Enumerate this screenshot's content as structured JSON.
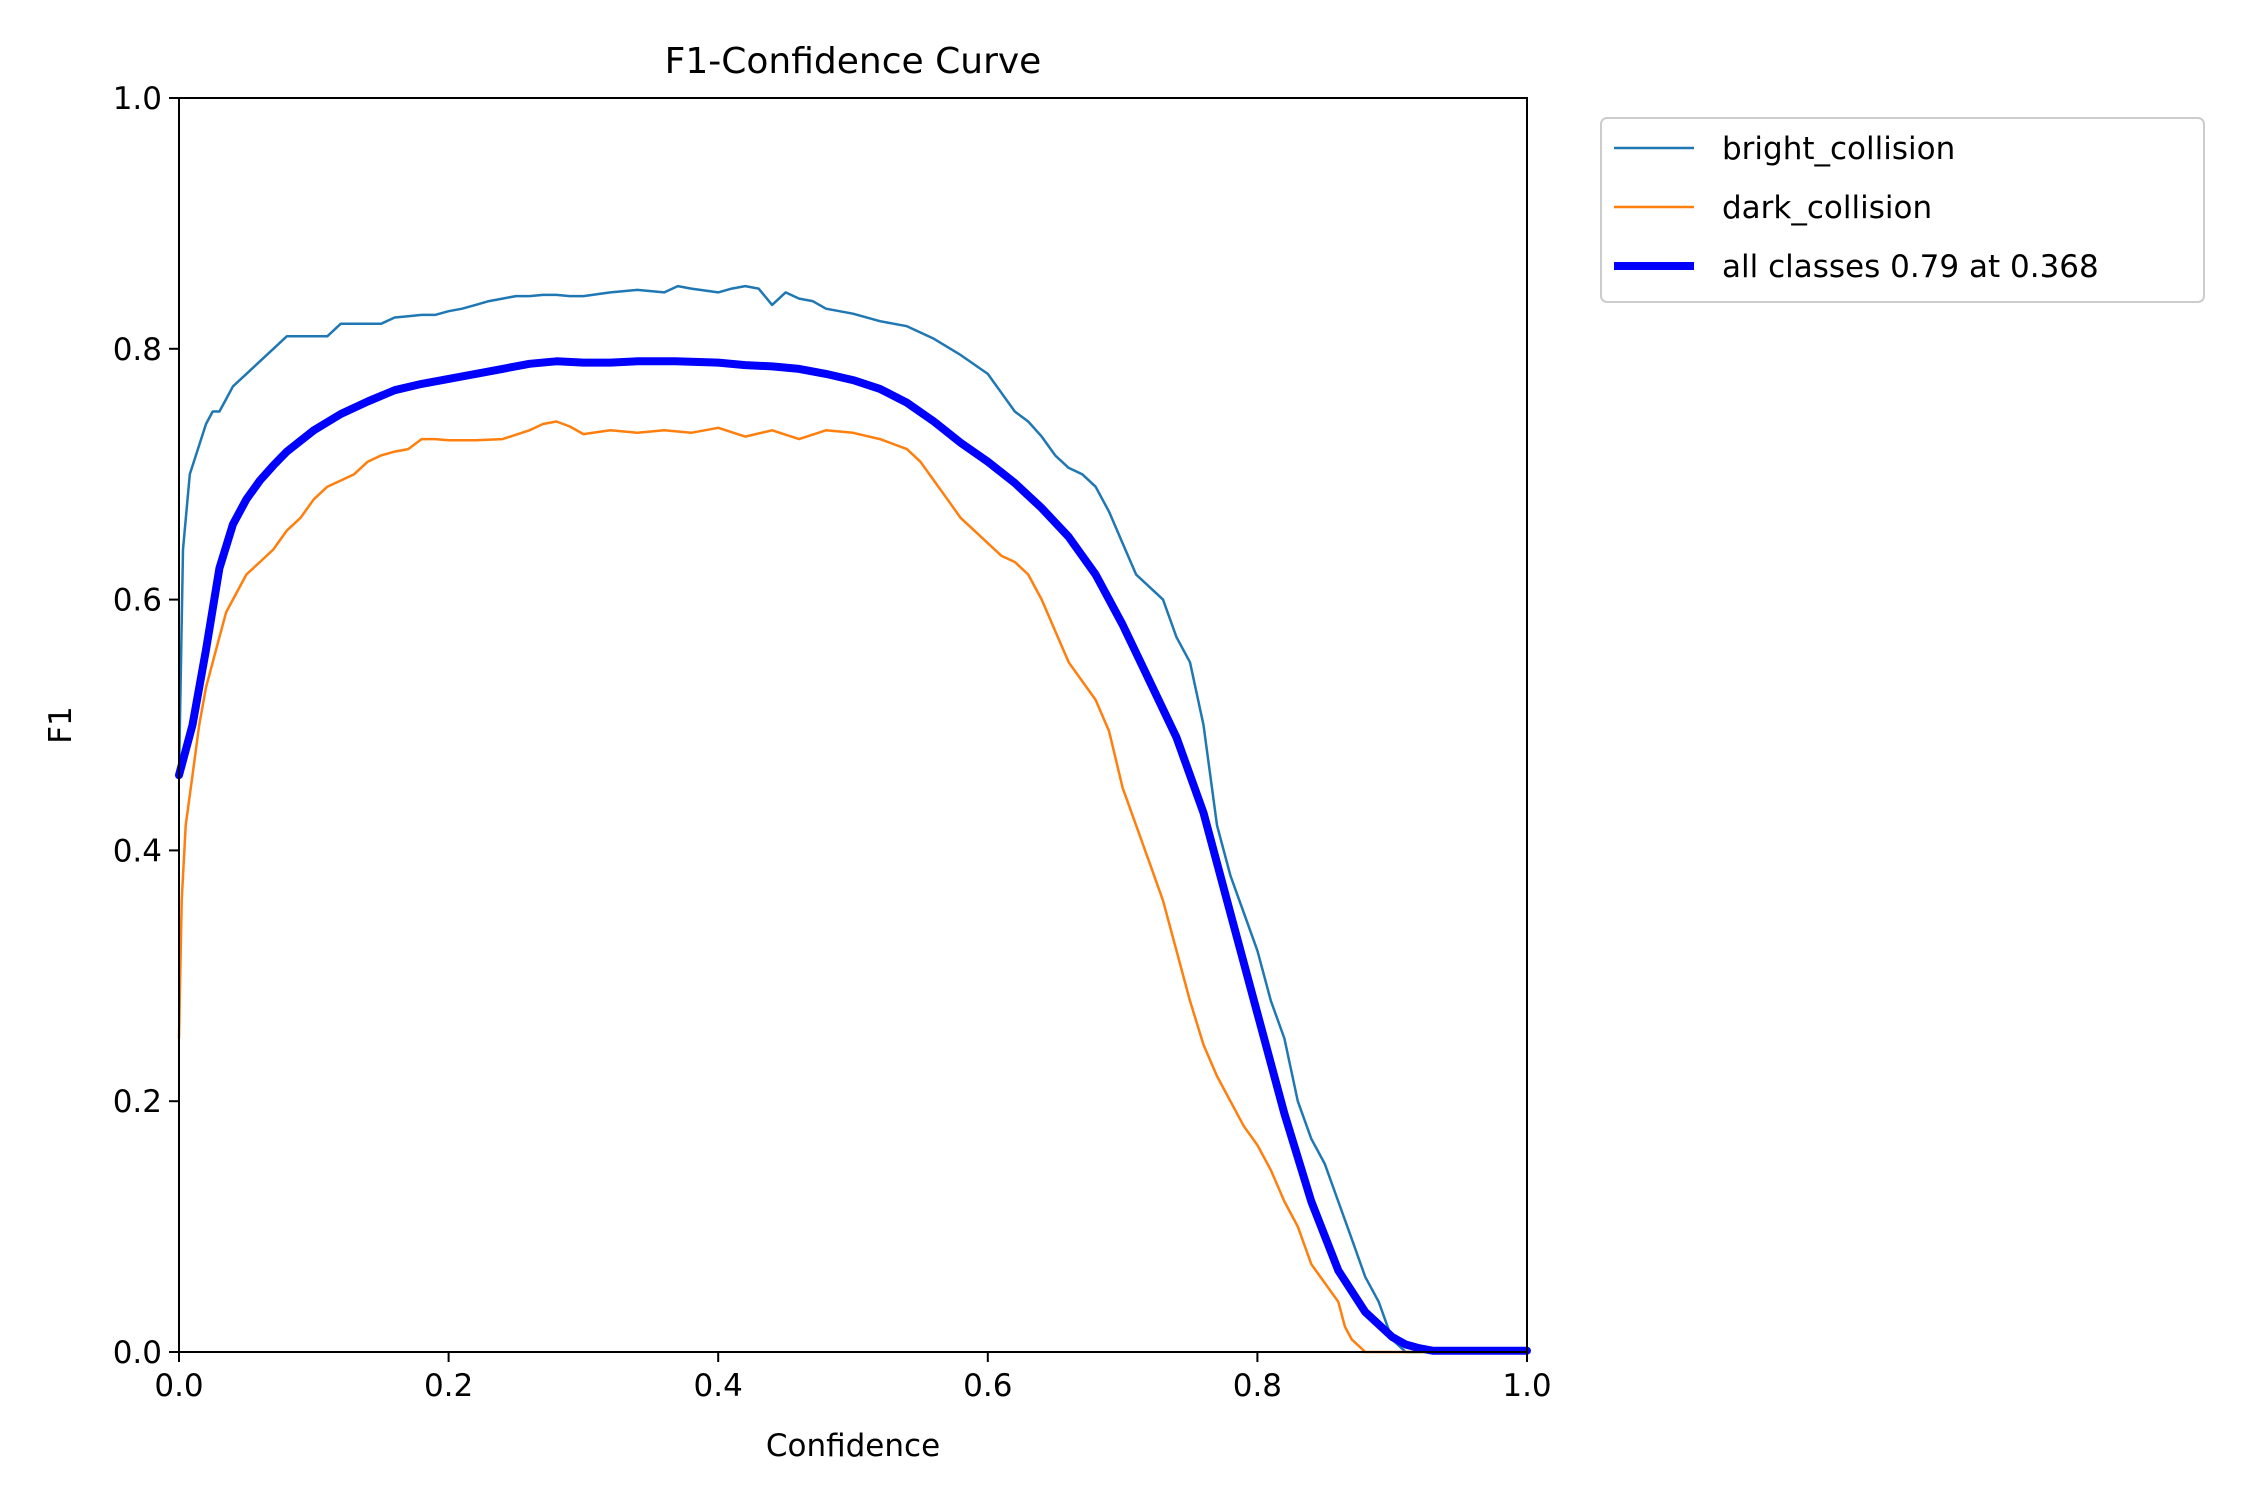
{
  "chart_data": {
    "type": "line",
    "title": "F1-Confidence Curve",
    "xlabel": "Confidence",
    "ylabel": "F1",
    "xlim": [
      0.0,
      1.0
    ],
    "ylim": [
      0.0,
      1.0
    ],
    "grid": false,
    "legend_position": "outside top-right",
    "xticks": [
      "0.0",
      "0.2",
      "0.4",
      "0.6",
      "0.8",
      "1.0"
    ],
    "yticks": [
      "0.0",
      "0.2",
      "0.4",
      "0.6",
      "0.8",
      "1.0"
    ],
    "series": [
      {
        "name": "bright_collision",
        "color": "#1f77b4",
        "emphasis": false,
        "x": [
          0.0,
          0.003,
          0.008,
          0.014,
          0.02,
          0.025,
          0.03,
          0.035,
          0.04,
          0.05,
          0.06,
          0.07,
          0.08,
          0.09,
          0.1,
          0.11,
          0.12,
          0.13,
          0.14,
          0.15,
          0.16,
          0.17,
          0.18,
          0.19,
          0.2,
          0.21,
          0.22,
          0.23,
          0.24,
          0.25,
          0.26,
          0.27,
          0.28,
          0.29,
          0.3,
          0.32,
          0.34,
          0.36,
          0.37,
          0.38,
          0.4,
          0.41,
          0.42,
          0.43,
          0.44,
          0.45,
          0.46,
          0.47,
          0.48,
          0.5,
          0.52,
          0.54,
          0.56,
          0.58,
          0.6,
          0.61,
          0.62,
          0.63,
          0.64,
          0.65,
          0.66,
          0.67,
          0.68,
          0.69,
          0.7,
          0.71,
          0.72,
          0.73,
          0.74,
          0.75,
          0.76,
          0.77,
          0.78,
          0.79,
          0.8,
          0.81,
          0.82,
          0.83,
          0.84,
          0.85,
          0.86,
          0.87,
          0.88,
          0.89,
          0.9,
          0.91,
          0.92,
          0.93,
          0.95,
          0.97,
          1.0
        ],
        "y": [
          0.46,
          0.64,
          0.7,
          0.72,
          0.74,
          0.75,
          0.75,
          0.76,
          0.77,
          0.78,
          0.79,
          0.8,
          0.81,
          0.81,
          0.81,
          0.81,
          0.82,
          0.82,
          0.82,
          0.82,
          0.825,
          0.826,
          0.827,
          0.827,
          0.83,
          0.832,
          0.835,
          0.838,
          0.84,
          0.842,
          0.842,
          0.843,
          0.843,
          0.842,
          0.842,
          0.845,
          0.847,
          0.845,
          0.85,
          0.848,
          0.845,
          0.848,
          0.85,
          0.848,
          0.835,
          0.845,
          0.84,
          0.838,
          0.832,
          0.828,
          0.822,
          0.818,
          0.808,
          0.795,
          0.78,
          0.765,
          0.75,
          0.742,
          0.73,
          0.715,
          0.705,
          0.7,
          0.69,
          0.67,
          0.645,
          0.62,
          0.61,
          0.6,
          0.57,
          0.55,
          0.5,
          0.42,
          0.38,
          0.35,
          0.32,
          0.28,
          0.25,
          0.2,
          0.17,
          0.15,
          0.12,
          0.09,
          0.06,
          0.04,
          0.01,
          0.0,
          0.0,
          0.0,
          0.0,
          0.0,
          0.0
        ]
      },
      {
        "name": "dark_collision",
        "color": "#ff7f0e",
        "emphasis": false,
        "x": [
          0.0,
          0.002,
          0.005,
          0.01,
          0.015,
          0.02,
          0.025,
          0.03,
          0.035,
          0.04,
          0.05,
          0.06,
          0.07,
          0.08,
          0.09,
          0.1,
          0.11,
          0.12,
          0.13,
          0.14,
          0.15,
          0.16,
          0.17,
          0.18,
          0.19,
          0.2,
          0.22,
          0.24,
          0.26,
          0.27,
          0.28,
          0.29,
          0.3,
          0.32,
          0.34,
          0.36,
          0.38,
          0.4,
          0.42,
          0.44,
          0.46,
          0.48,
          0.5,
          0.52,
          0.54,
          0.55,
          0.56,
          0.57,
          0.58,
          0.59,
          0.6,
          0.61,
          0.62,
          0.63,
          0.64,
          0.65,
          0.66,
          0.67,
          0.68,
          0.69,
          0.7,
          0.71,
          0.72,
          0.73,
          0.74,
          0.75,
          0.76,
          0.77,
          0.78,
          0.79,
          0.8,
          0.81,
          0.82,
          0.83,
          0.84,
          0.85,
          0.86,
          0.865,
          0.87,
          0.875,
          0.88,
          0.9,
          0.95,
          1.0
        ],
        "y": [
          0.25,
          0.36,
          0.42,
          0.46,
          0.5,
          0.53,
          0.55,
          0.57,
          0.59,
          0.6,
          0.62,
          0.63,
          0.64,
          0.655,
          0.665,
          0.68,
          0.69,
          0.695,
          0.7,
          0.71,
          0.715,
          0.718,
          0.72,
          0.728,
          0.728,
          0.727,
          0.727,
          0.728,
          0.735,
          0.74,
          0.742,
          0.738,
          0.732,
          0.735,
          0.733,
          0.735,
          0.733,
          0.737,
          0.73,
          0.735,
          0.728,
          0.735,
          0.733,
          0.728,
          0.72,
          0.71,
          0.695,
          0.68,
          0.665,
          0.655,
          0.645,
          0.635,
          0.63,
          0.62,
          0.6,
          0.575,
          0.55,
          0.535,
          0.52,
          0.495,
          0.45,
          0.42,
          0.39,
          0.36,
          0.32,
          0.28,
          0.245,
          0.22,
          0.2,
          0.18,
          0.165,
          0.145,
          0.12,
          0.1,
          0.07,
          0.055,
          0.04,
          0.02,
          0.01,
          0.005,
          0.0,
          0.0,
          0.0,
          0.0
        ]
      },
      {
        "name": "all classes 0.79 at 0.368",
        "color": "#0000ff",
        "emphasis": true,
        "x": [
          0.0,
          0.01,
          0.02,
          0.03,
          0.04,
          0.05,
          0.06,
          0.07,
          0.08,
          0.1,
          0.12,
          0.14,
          0.16,
          0.18,
          0.2,
          0.22,
          0.24,
          0.26,
          0.28,
          0.3,
          0.32,
          0.34,
          0.368,
          0.4,
          0.42,
          0.44,
          0.46,
          0.48,
          0.5,
          0.52,
          0.54,
          0.56,
          0.58,
          0.6,
          0.62,
          0.64,
          0.66,
          0.68,
          0.7,
          0.72,
          0.74,
          0.76,
          0.78,
          0.8,
          0.82,
          0.84,
          0.86,
          0.88,
          0.9,
          0.91,
          0.92,
          0.93,
          0.95,
          1.0
        ],
        "y": [
          0.46,
          0.5,
          0.56,
          0.625,
          0.66,
          0.68,
          0.695,
          0.707,
          0.718,
          0.735,
          0.748,
          0.758,
          0.767,
          0.772,
          0.776,
          0.78,
          0.784,
          0.788,
          0.79,
          0.789,
          0.789,
          0.79,
          0.79,
          0.789,
          0.787,
          0.786,
          0.784,
          0.78,
          0.775,
          0.768,
          0.757,
          0.742,
          0.725,
          0.71,
          0.693,
          0.673,
          0.65,
          0.62,
          0.58,
          0.535,
          0.49,
          0.43,
          0.35,
          0.27,
          0.19,
          0.12,
          0.065,
          0.032,
          0.012,
          0.006,
          0.003,
          0.001,
          0.001,
          0.001
        ]
      }
    ]
  }
}
